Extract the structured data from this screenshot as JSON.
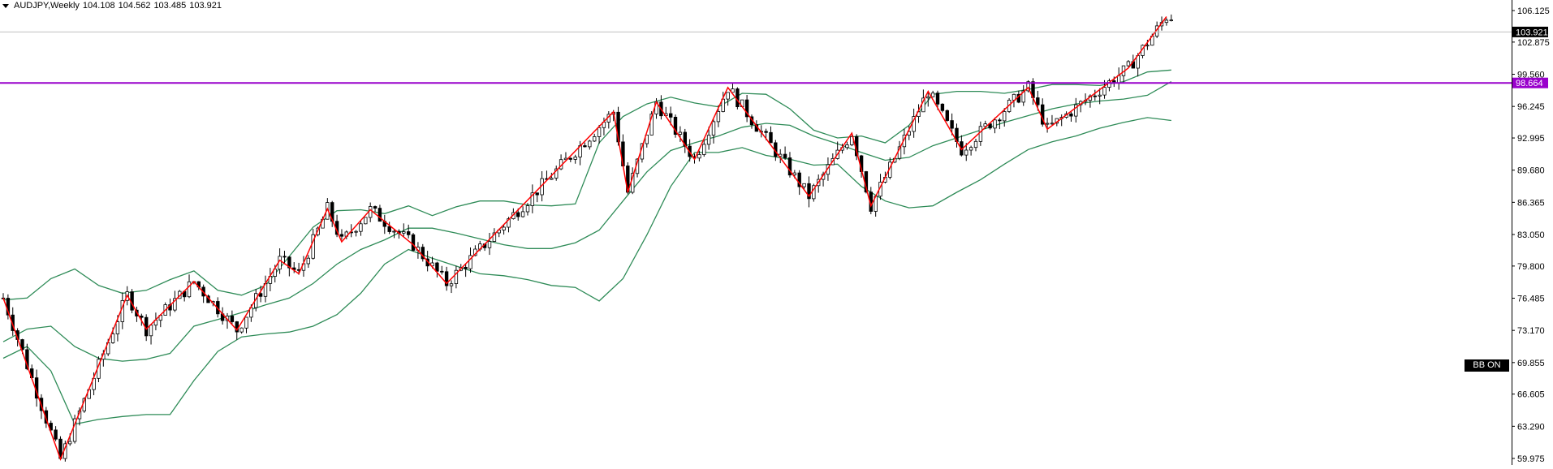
{
  "header": {
    "symbol": "AUDJPY,Weekly",
    "open": "104.108",
    "high": "104.562",
    "low": "103.485",
    "close": "103.921"
  },
  "indicator_label": "BB ON",
  "colors": {
    "zigzag": "#ff0000",
    "bands": "#2e8b57",
    "level": "#9900cc",
    "candle": "#000000",
    "price_line": "#c0c0c0"
  },
  "chart_data": {
    "type": "candlestick",
    "title": "",
    "xlabel": "",
    "ylabel": "",
    "ylim": [
      59.0,
      107.0
    ],
    "y_ticks": [
      "106.125",
      "102.875",
      "99.560",
      "96.245",
      "92.995",
      "89.680",
      "86.365",
      "83.050",
      "79.800",
      "76.485",
      "73.170",
      "69.855",
      "66.605",
      "63.290",
      "59.975"
    ],
    "current_price": {
      "value": 103.921,
      "label": "103.921"
    },
    "horizontal_level": {
      "value": 98.664,
      "label": "98.664"
    },
    "zigzag": [
      [
        0,
        76.5
      ],
      [
        12,
        59.9
      ],
      [
        26,
        76.8
      ],
      [
        30,
        73.3
      ],
      [
        40,
        78.2
      ],
      [
        49,
        73.2
      ],
      [
        58,
        80.4
      ],
      [
        62,
        79.0
      ],
      [
        68,
        85.7
      ],
      [
        71,
        82.3
      ],
      [
        77,
        85.6
      ],
      [
        86,
        82.0
      ],
      [
        93,
        78.0
      ],
      [
        128,
        95.7
      ],
      [
        131,
        87.4
      ],
      [
        137,
        96.7
      ],
      [
        145,
        90.8
      ],
      [
        152,
        98.2
      ],
      [
        169,
        87.0
      ],
      [
        178,
        93.5
      ],
      [
        182,
        86.0
      ],
      [
        194,
        97.8
      ],
      [
        201,
        91.8
      ],
      [
        215,
        98.2
      ],
      [
        219,
        93.9
      ],
      [
        236,
        100.2
      ],
      [
        244,
        105.5
      ]
    ],
    "bollinger": {
      "x": [
        0,
        5,
        10,
        15,
        20,
        25,
        30,
        35,
        40,
        45,
        50,
        55,
        60,
        65,
        70,
        75,
        80,
        85,
        90,
        95,
        100,
        105,
        110,
        115,
        120,
        125,
        130,
        135,
        140,
        145,
        150,
        155,
        160,
        165,
        170,
        175,
        180,
        185,
        190,
        195,
        200,
        205,
        210,
        215,
        220,
        225,
        230,
        235,
        240,
        245
      ],
      "upper": [
        76.3,
        76.5,
        78.5,
        79.5,
        77.8,
        77.0,
        77.3,
        78.4,
        79.3,
        77.3,
        76.8,
        77.8,
        80.8,
        83.8,
        85.5,
        85.6,
        85.2,
        86.0,
        85.0,
        85.9,
        86.5,
        86.5,
        86.1,
        86.0,
        86.2,
        92.5,
        95.2,
        96.5,
        97.2,
        96.6,
        96.2,
        97.6,
        97.5,
        96.0,
        93.8,
        93.0,
        93.2,
        92.5,
        94.3,
        97.5,
        97.8,
        97.8,
        97.6,
        98.0,
        98.5,
        98.5,
        98.4,
        98.8,
        99.8,
        100.0
      ],
      "middle": [
        72.0,
        73.3,
        73.6,
        71.5,
        70.3,
        70.0,
        70.2,
        70.8,
        73.6,
        74.3,
        75.0,
        75.8,
        76.5,
        78.0,
        80.0,
        81.5,
        82.5,
        83.7,
        83.7,
        83.2,
        82.6,
        82.0,
        81.6,
        81.6,
        82.2,
        83.5,
        86.5,
        89.5,
        91.7,
        92.5,
        93.2,
        94.1,
        94.5,
        94.3,
        93.2,
        92.4,
        91.5,
        90.7,
        91.0,
        92.2,
        93.0,
        93.8,
        94.6,
        95.3,
        96.0,
        96.5,
        96.8,
        97.0,
        97.4,
        98.8
      ],
      "lower": [
        70.3,
        71.5,
        69.0,
        63.5,
        64.0,
        64.3,
        64.5,
        64.5,
        68.0,
        71.0,
        72.5,
        72.8,
        73.0,
        73.6,
        74.8,
        77.0,
        80.0,
        81.5,
        80.6,
        79.8,
        79.0,
        78.8,
        78.4,
        77.8,
        77.6,
        76.2,
        78.5,
        83.0,
        88.0,
        91.5,
        91.5,
        92.0,
        91.2,
        90.8,
        90.2,
        90.3,
        88.0,
        86.5,
        85.8,
        86.0,
        87.4,
        88.7,
        90.3,
        91.8,
        92.6,
        93.2,
        94.0,
        94.6,
        95.1,
        94.8
      ]
    }
  }
}
